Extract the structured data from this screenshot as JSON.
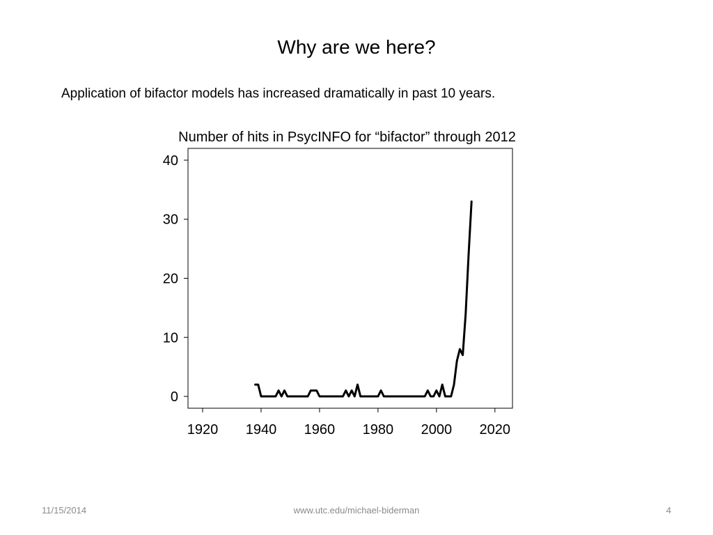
{
  "slide": {
    "title": "Why are we here?",
    "bullet": "Application of bifactor models has increased dramatically in past 10 years."
  },
  "footer": {
    "date": "11/15/2014",
    "url": "www.utc.edu/michael-biderman",
    "page_number": "4"
  },
  "chart_data": {
    "type": "line",
    "title": "Number of hits in PsycINFO for “bifactor” through 2012",
    "xlabel": "",
    "ylabel": "",
    "xlim": [
      1915,
      2026
    ],
    "ylim": [
      -2,
      42
    ],
    "x_ticks": [
      1920,
      1940,
      1960,
      1980,
      2000,
      2020
    ],
    "x_tick_labels": [
      "1920",
      "1940",
      "1960",
      "1980",
      "2000",
      "2020"
    ],
    "y_ticks": [
      0,
      10,
      20,
      30,
      40
    ],
    "y_tick_labels": [
      "0",
      "10",
      "20",
      "30",
      "40"
    ],
    "grid": false,
    "line_color": "#000000",
    "series": [
      {
        "x": [
          1938,
          1939,
          1940,
          1941,
          1942,
          1943,
          1944,
          1945,
          1946,
          1947,
          1948,
          1949,
          1950,
          1951,
          1952,
          1953,
          1954,
          1955,
          1956,
          1957,
          1958,
          1959,
          1960,
          1961,
          1962,
          1963,
          1964,
          1965,
          1966,
          1967,
          1968,
          1969,
          1970,
          1971,
          1972,
          1973,
          1974,
          1975,
          1976,
          1977,
          1978,
          1979,
          1980,
          1981,
          1982,
          1983,
          1984,
          1985,
          1986,
          1987,
          1988,
          1989,
          1990,
          1991,
          1992,
          1993,
          1994,
          1995,
          1996,
          1997,
          1998,
          1999,
          2000,
          2001,
          2002,
          2003,
          2004,
          2005,
          2006,
          2007,
          2008,
          2009,
          2010,
          2011,
          2012
        ],
        "values": [
          2,
          2,
          0,
          0,
          0,
          0,
          0,
          0,
          1,
          0,
          1,
          0,
          0,
          0,
          0,
          0,
          0,
          0,
          0,
          1,
          1,
          1,
          0,
          0,
          0,
          0,
          0,
          0,
          0,
          0,
          0,
          1,
          0,
          1,
          0,
          2,
          0,
          0,
          0,
          0,
          0,
          0,
          0,
          1,
          0,
          0,
          0,
          0,
          0,
          0,
          0,
          0,
          0,
          0,
          0,
          0,
          0,
          0,
          0,
          1,
          0,
          0,
          1,
          0,
          2,
          0,
          0,
          0,
          2,
          6,
          8,
          7,
          14,
          24,
          33
        ]
      }
    ]
  }
}
